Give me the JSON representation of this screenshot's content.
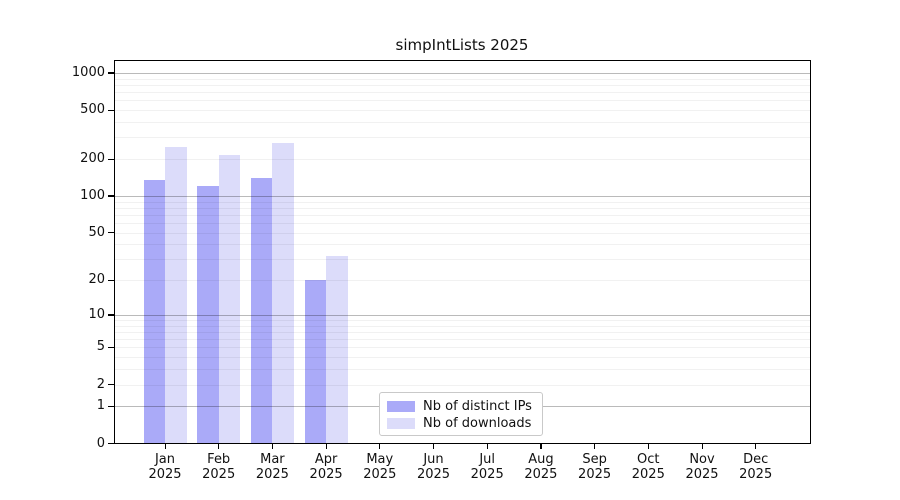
{
  "chart_data": {
    "type": "bar",
    "title": "simpIntLists 2025",
    "categories": [
      "Jan 2025",
      "Feb 2025",
      "Mar 2025",
      "Apr 2025",
      "May 2025",
      "Jun 2025",
      "Jul 2025",
      "Aug 2025",
      "Sep 2025",
      "Oct 2025",
      "Nov 2025",
      "Dec 2025"
    ],
    "series": [
      {
        "name": "Nb of distinct IPs",
        "color": "#aaaaf8",
        "values": [
          135,
          120,
          140,
          20,
          0,
          0,
          0,
          0,
          0,
          0,
          0,
          0
        ]
      },
      {
        "name": "Nb of downloads",
        "color": "#dcdcfa",
        "values": [
          250,
          215,
          270,
          32,
          0,
          0,
          0,
          0,
          0,
          0,
          0,
          0
        ]
      }
    ],
    "xlabel": "",
    "ylabel": "",
    "yscale": "log1p",
    "ylim": [
      0,
      1274
    ],
    "yticks": [
      0,
      1,
      2,
      5,
      10,
      20,
      50,
      100,
      200,
      500,
      1000
    ],
    "major_gridlines": [
      1,
      10,
      100,
      1000
    ],
    "minor_gridlines": [
      2,
      3,
      4,
      5,
      6,
      7,
      8,
      9,
      20,
      30,
      40,
      50,
      60,
      70,
      80,
      90,
      200,
      300,
      400,
      500,
      600,
      700,
      800,
      900
    ],
    "grid": true,
    "legend": {
      "position": "lower center",
      "entries": [
        "Nb of distinct IPs",
        "Nb of downloads"
      ]
    }
  }
}
